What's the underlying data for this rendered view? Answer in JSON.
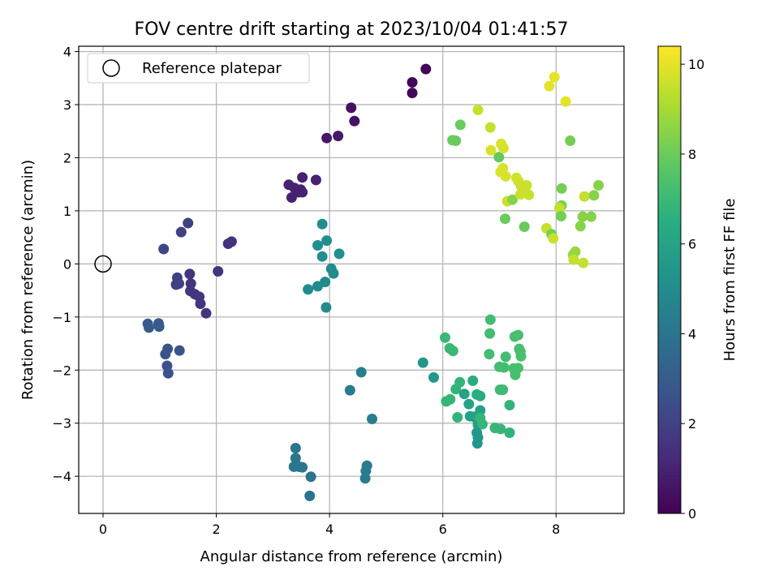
{
  "chart_data": {
    "type": "scatter",
    "title": "FOV centre drift starting at 2023/10/04 01:41:57",
    "xlabel": "Angular distance from reference (arcmin)",
    "ylabel": "Rotation from reference (arcmin)",
    "xlim": [
      -0.43,
      9.2
    ],
    "ylim": [
      -4.7,
      4.1
    ],
    "xticks": [
      0,
      2,
      4,
      6,
      8
    ],
    "yticks": [
      -4,
      -3,
      -2,
      -1,
      0,
      1,
      2,
      3,
      4
    ],
    "grid": true,
    "legend": {
      "placement": "top-left",
      "entries": [
        "Reference platepar"
      ]
    },
    "reference_point": {
      "x": 0,
      "y": 0
    },
    "colorbar": {
      "label": "Hours from first FF file",
      "colormap": "viridis",
      "range": [
        0,
        10.4
      ],
      "ticks": [
        0,
        2,
        4,
        6,
        8,
        10
      ]
    },
    "series": [
      {
        "points": [
          {
            "x": 5.7,
            "y": 3.67,
            "c": 0.1
          },
          {
            "x": 5.46,
            "y": 3.42,
            "c": 0.2
          },
          {
            "x": 5.46,
            "y": 3.22,
            "c": 0.2
          },
          {
            "x": 4.38,
            "y": 2.94,
            "c": 0.5
          },
          {
            "x": 4.44,
            "y": 2.69,
            "c": 0.5
          },
          {
            "x": 3.95,
            "y": 2.37,
            "c": 0.7
          },
          {
            "x": 4.15,
            "y": 2.41,
            "c": 0.7
          },
          {
            "x": 3.52,
            "y": 1.63,
            "c": 1.0
          },
          {
            "x": 3.76,
            "y": 1.58,
            "c": 1.0
          },
          {
            "x": 3.28,
            "y": 1.49,
            "c": 1.0
          },
          {
            "x": 3.38,
            "y": 1.43,
            "c": 1.0
          },
          {
            "x": 3.45,
            "y": 1.35,
            "c": 1.0
          },
          {
            "x": 3.52,
            "y": 1.35,
            "c": 1.0
          },
          {
            "x": 3.33,
            "y": 1.25,
            "c": 1.0
          },
          {
            "x": 3.49,
            "y": 1.4,
            "c": 1.0
          },
          {
            "x": 2.27,
            "y": 0.42,
            "c": 1.5
          },
          {
            "x": 2.21,
            "y": 0.38,
            "c": 1.5
          },
          {
            "x": 2.03,
            "y": -0.14,
            "c": 1.6
          },
          {
            "x": 1.5,
            "y": 0.77,
            "c": 2.0
          },
          {
            "x": 1.38,
            "y": 0.6,
            "c": 2.0
          },
          {
            "x": 1.07,
            "y": 0.28,
            "c": 2.2
          },
          {
            "x": 1.53,
            "y": -0.19,
            "c": 1.6
          },
          {
            "x": 1.55,
            "y": -0.37,
            "c": 1.6
          },
          {
            "x": 1.54,
            "y": -0.51,
            "c": 1.6
          },
          {
            "x": 1.62,
            "y": -0.57,
            "c": 1.6
          },
          {
            "x": 1.7,
            "y": -0.62,
            "c": 1.6
          },
          {
            "x": 1.72,
            "y": -0.75,
            "c": 1.6
          },
          {
            "x": 1.82,
            "y": -0.93,
            "c": 1.6
          },
          {
            "x": 1.31,
            "y": -0.26,
            "c": 2.0
          },
          {
            "x": 1.29,
            "y": -0.39,
            "c": 2.0
          },
          {
            "x": 1.34,
            "y": -0.37,
            "c": 2.0
          },
          {
            "x": 0.79,
            "y": -1.13,
            "c": 3.0
          },
          {
            "x": 0.81,
            "y": -1.2,
            "c": 3.0
          },
          {
            "x": 0.98,
            "y": -1.12,
            "c": 3.0
          },
          {
            "x": 0.99,
            "y": -1.18,
            "c": 3.0
          },
          {
            "x": 1.14,
            "y": -1.6,
            "c": 2.7
          },
          {
            "x": 1.1,
            "y": -1.7,
            "c": 2.7
          },
          {
            "x": 1.35,
            "y": -1.63,
            "c": 2.7
          },
          {
            "x": 1.13,
            "y": -1.92,
            "c": 2.6
          },
          {
            "x": 1.15,
            "y": -2.06,
            "c": 2.6
          },
          {
            "x": 3.87,
            "y": 0.75,
            "c": 5.2
          },
          {
            "x": 3.95,
            "y": 0.44,
            "c": 5.1
          },
          {
            "x": 3.79,
            "y": 0.35,
            "c": 5.1
          },
          {
            "x": 4.17,
            "y": 0.19,
            "c": 5.2
          },
          {
            "x": 3.87,
            "y": 0.14,
            "c": 5.2
          },
          {
            "x": 4.03,
            "y": -0.09,
            "c": 5.0
          },
          {
            "x": 4.07,
            "y": -0.18,
            "c": 5.0
          },
          {
            "x": 3.92,
            "y": -0.34,
            "c": 5.0
          },
          {
            "x": 3.79,
            "y": -0.42,
            "c": 5.0
          },
          {
            "x": 3.62,
            "y": -0.48,
            "c": 5.0
          },
          {
            "x": 3.94,
            "y": -0.82,
            "c": 5.0
          },
          {
            "x": 4.56,
            "y": -2.04,
            "c": 4.5
          },
          {
            "x": 4.36,
            "y": -2.38,
            "c": 4.3
          },
          {
            "x": 4.75,
            "y": -2.92,
            "c": 4.4
          },
          {
            "x": 3.4,
            "y": -3.47,
            "c": 4.1
          },
          {
            "x": 3.4,
            "y": -3.66,
            "c": 4.1
          },
          {
            "x": 3.37,
            "y": -3.82,
            "c": 4.1
          },
          {
            "x": 3.46,
            "y": -3.82,
            "c": 4.1
          },
          {
            "x": 3.52,
            "y": -3.83,
            "c": 4.1
          },
          {
            "x": 3.67,
            "y": -4.01,
            "c": 4.0
          },
          {
            "x": 3.65,
            "y": -4.37,
            "c": 4.0
          },
          {
            "x": 4.66,
            "y": -3.8,
            "c": 4.3
          },
          {
            "x": 4.64,
            "y": -3.9,
            "c": 4.3
          },
          {
            "x": 4.63,
            "y": -4.04,
            "c": 4.3
          },
          {
            "x": 5.65,
            "y": -1.86,
            "c": 5.5
          },
          {
            "x": 5.84,
            "y": -2.14,
            "c": 5.5
          },
          {
            "x": 6.04,
            "y": -1.39,
            "c": 7.0
          },
          {
            "x": 6.12,
            "y": -1.59,
            "c": 7.0
          },
          {
            "x": 6.18,
            "y": -1.64,
            "c": 7.0
          },
          {
            "x": 6.06,
            "y": -2.59,
            "c": 6.9
          },
          {
            "x": 6.13,
            "y": -2.55,
            "c": 6.9
          },
          {
            "x": 6.23,
            "y": -2.36,
            "c": 6.8
          },
          {
            "x": 6.3,
            "y": -2.23,
            "c": 6.8
          },
          {
            "x": 6.26,
            "y": -2.89,
            "c": 6.8
          },
          {
            "x": 6.38,
            "y": -2.45,
            "c": 6.0
          },
          {
            "x": 6.46,
            "y": -2.64,
            "c": 6.0
          },
          {
            "x": 6.48,
            "y": -2.87,
            "c": 6.0
          },
          {
            "x": 6.53,
            "y": -2.2,
            "c": 6.5
          },
          {
            "x": 6.6,
            "y": -2.46,
            "c": 6.5
          },
          {
            "x": 6.66,
            "y": -2.49,
            "c": 6.5
          },
          {
            "x": 6.55,
            "y": -2.88,
            "c": 6.0
          },
          {
            "x": 6.62,
            "y": -2.96,
            "c": 6.0
          },
          {
            "x": 6.66,
            "y": -2.76,
            "c": 6.0
          },
          {
            "x": 6.62,
            "y": -3.03,
            "c": 5.8
          },
          {
            "x": 6.6,
            "y": -3.18,
            "c": 5.5
          },
          {
            "x": 6.62,
            "y": -3.27,
            "c": 5.5
          },
          {
            "x": 6.61,
            "y": -3.38,
            "c": 5.5
          },
          {
            "x": 6.66,
            "y": -2.9,
            "c": 6.9
          },
          {
            "x": 6.7,
            "y": -3.02,
            "c": 6.9
          },
          {
            "x": 6.92,
            "y": -3.09,
            "c": 6.9
          },
          {
            "x": 7.02,
            "y": -3.11,
            "c": 6.9
          },
          {
            "x": 7.18,
            "y": -3.18,
            "c": 6.8
          },
          {
            "x": 7.18,
            "y": -2.66,
            "c": 6.8
          },
          {
            "x": 6.84,
            "y": -1.05,
            "c": 7.2
          },
          {
            "x": 6.83,
            "y": -1.31,
            "c": 7.2
          },
          {
            "x": 6.82,
            "y": -1.7,
            "c": 7.2
          },
          {
            "x": 7.0,
            "y": -1.94,
            "c": 7.2
          },
          {
            "x": 7.08,
            "y": -1.95,
            "c": 7.2
          },
          {
            "x": 7.11,
            "y": -1.75,
            "c": 7.2
          },
          {
            "x": 7.01,
            "y": -2.37,
            "c": 7.1
          },
          {
            "x": 7.06,
            "y": -2.37,
            "c": 7.1
          },
          {
            "x": 7.27,
            "y": -1.37,
            "c": 7.3
          },
          {
            "x": 7.33,
            "y": -1.34,
            "c": 7.3
          },
          {
            "x": 7.35,
            "y": -1.6,
            "c": 7.3
          },
          {
            "x": 7.37,
            "y": -1.65,
            "c": 7.3
          },
          {
            "x": 7.38,
            "y": -1.74,
            "c": 7.3
          },
          {
            "x": 7.25,
            "y": -1.97,
            "c": 7.3
          },
          {
            "x": 7.28,
            "y": -2.09,
            "c": 7.3
          },
          {
            "x": 7.33,
            "y": -1.96,
            "c": 7.3
          },
          {
            "x": 6.31,
            "y": 2.62,
            "c": 8.0
          },
          {
            "x": 6.17,
            "y": 2.33,
            "c": 8.0
          },
          {
            "x": 6.23,
            "y": 2.32,
            "c": 8.0
          },
          {
            "x": 6.62,
            "y": 2.9,
            "c": 9.5
          },
          {
            "x": 6.84,
            "y": 2.57,
            "c": 9.5
          },
          {
            "x": 6.85,
            "y": 2.14,
            "c": 9.8
          },
          {
            "x": 6.99,
            "y": 2.01,
            "c": 7.9
          },
          {
            "x": 7.03,
            "y": 2.26,
            "c": 9.8
          },
          {
            "x": 7.07,
            "y": 2.18,
            "c": 9.8
          },
          {
            "x": 7.02,
            "y": 1.73,
            "c": 9.8
          },
          {
            "x": 7.06,
            "y": 1.8,
            "c": 9.8
          },
          {
            "x": 7.11,
            "y": 1.65,
            "c": 9.8
          },
          {
            "x": 7.14,
            "y": 1.18,
            "c": 9.6
          },
          {
            "x": 7.23,
            "y": 1.21,
            "c": 8.5
          },
          {
            "x": 7.1,
            "y": 0.85,
            "c": 8.0
          },
          {
            "x": 7.3,
            "y": 1.62,
            "c": 9.7
          },
          {
            "x": 7.34,
            "y": 1.55,
            "c": 9.7
          },
          {
            "x": 7.38,
            "y": 1.47,
            "c": 9.6
          },
          {
            "x": 7.48,
            "y": 1.48,
            "c": 9.6
          },
          {
            "x": 7.42,
            "y": 1.36,
            "c": 9.6
          },
          {
            "x": 7.37,
            "y": 1.31,
            "c": 9.6
          },
          {
            "x": 7.52,
            "y": 1.3,
            "c": 9.6
          },
          {
            "x": 7.44,
            "y": 0.7,
            "c": 8.0
          },
          {
            "x": 7.88,
            "y": 3.35,
            "c": 10.0
          },
          {
            "x": 7.97,
            "y": 3.52,
            "c": 10.0
          },
          {
            "x": 8.17,
            "y": 3.06,
            "c": 10.0
          },
          {
            "x": 8.25,
            "y": 2.32,
            "c": 8.2
          },
          {
            "x": 8.1,
            "y": 1.42,
            "c": 8.2
          },
          {
            "x": 8.1,
            "y": 1.1,
            "c": 8.3
          },
          {
            "x": 8.06,
            "y": 1.05,
            "c": 9.5
          },
          {
            "x": 8.09,
            "y": 0.9,
            "c": 8.2
          },
          {
            "x": 7.83,
            "y": 0.67,
            "c": 9.5
          },
          {
            "x": 7.92,
            "y": 0.56,
            "c": 8.2
          },
          {
            "x": 7.95,
            "y": 0.48,
            "c": 9.6
          },
          {
            "x": 8.34,
            "y": 0.23,
            "c": 8.8
          },
          {
            "x": 8.3,
            "y": 0.17,
            "c": 8.8
          },
          {
            "x": 8.31,
            "y": 0.08,
            "c": 9.5
          },
          {
            "x": 8.48,
            "y": 0.02,
            "c": 9.5
          },
          {
            "x": 8.43,
            "y": 0.71,
            "c": 8.5
          },
          {
            "x": 8.47,
            "y": 0.89,
            "c": 8.5
          },
          {
            "x": 8.62,
            "y": 0.89,
            "c": 8.5
          },
          {
            "x": 8.5,
            "y": 1.27,
            "c": 9.5
          },
          {
            "x": 8.67,
            "y": 1.29,
            "c": 8.5
          },
          {
            "x": 8.75,
            "y": 1.48,
            "c": 8.5
          }
        ]
      }
    ]
  }
}
